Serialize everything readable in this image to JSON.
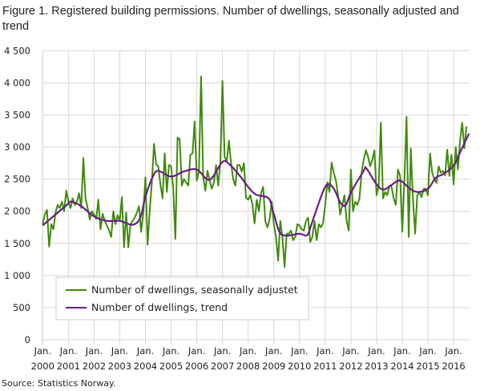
{
  "chart_data": {
    "type": "line",
    "title": "Figure 1. Registered building permissions. Number of dwellings, seasonally adjusted and trend",
    "source": "Source: Statistics Norway.",
    "xlabel": "",
    "ylabel": "",
    "ylim": [
      0,
      4500
    ],
    "yticks": [
      0,
      500,
      1000,
      1500,
      2000,
      2500,
      3000,
      3500,
      4000,
      4500
    ],
    "ytick_labels": [
      "0",
      "500",
      "1 000",
      "1 500",
      "2 000",
      "2 500",
      "3 000",
      "3 500",
      "4 000",
      "4 500"
    ],
    "xtick_prefix": "Jan.",
    "xtick_years": [
      "2000",
      "2001",
      "2002",
      "2003",
      "2004",
      "2005",
      "2006",
      "2007",
      "2008",
      "2009",
      "2010",
      "2011",
      "2012",
      "2013",
      "2014",
      "2015",
      "2016"
    ],
    "x_start": "2000-01",
    "x_frequency": "monthly",
    "grid": true,
    "legend_placement": "bottom-left",
    "series": [
      {
        "name": "Number of dwellings, seasonally adjustet",
        "color": "#3f8a0b",
        "values": [
          1800,
          1950,
          2020,
          1450,
          1800,
          1720,
          1980,
          2100,
          2050,
          2150,
          2000,
          2320,
          2150,
          2050,
          2200,
          2100,
          2150,
          2280,
          2050,
          2830,
          2200,
          2050,
          1870,
          2000,
          1950,
          1880,
          2180,
          1720,
          1960,
          1850,
          1780,
          1700,
          1600,
          2000,
          1800,
          1940,
          1850,
          2220,
          1440,
          1980,
          1440,
          1800,
          1850,
          1900,
          1980,
          2080,
          1680,
          1970,
          2530,
          1480,
          2010,
          2450,
          3050,
          2730,
          2700,
          2420,
          2200,
          2900,
          2300,
          2720,
          2700,
          2350,
          1570,
          3150,
          3120,
          2400,
          2500,
          2450,
          2400,
          2880,
          2900,
          3400,
          2480,
          2620,
          4100,
          2520,
          2320,
          2630,
          2480,
          2350,
          2450,
          2720,
          2400,
          2750,
          4030,
          2850,
          2770,
          3100,
          2750,
          2500,
          2400,
          2720,
          2720,
          2620,
          2750,
          2210,
          2180,
          2250,
          2100,
          1810,
          2180,
          2000,
          2280,
          2380,
          1850,
          1750,
          1870,
          2150,
          1800,
          1600,
          1230,
          1850,
          1600,
          1130,
          1650,
          1650,
          1700,
          1550,
          1600,
          1800,
          1780,
          1720,
          1700,
          1850,
          1900,
          1520,
          1600,
          1850,
          1550,
          1800,
          1750,
          1820,
          2100,
          2450,
          2300,
          2760,
          2600,
          2480,
          2250,
          1950,
          2100,
          2250,
          1850,
          1700,
          2650,
          2000,
          2150,
          2100,
          2200,
          2600,
          2800,
          2950,
          2850,
          2700,
          2800,
          2950,
          2250,
          2400,
          3380,
          2200,
          2300,
          2250,
          2400,
          2380,
          2200,
          2100,
          2650,
          2550,
          1680,
          2500,
          3470,
          1600,
          2980,
          2200,
          1650,
          2250,
          2300,
          2220,
          2350,
          2350,
          2250,
          2900,
          2600,
          2500,
          2440,
          2700,
          2600,
          2630,
          2560,
          2960,
          2550,
          2880,
          2420,
          3000,
          2650,
          3100,
          3380,
          2980,
          3320
        ]
      },
      {
        "name": "Number of dwellings, trend",
        "color": "#6e1a8a",
        "points": [
          [
            2000.0,
            1780
          ],
          [
            2000.5,
            1950
          ],
          [
            2001.0,
            2120
          ],
          [
            2001.1,
            2150
          ],
          [
            2001.5,
            2080
          ],
          [
            2002.0,
            1920
          ],
          [
            2002.5,
            1850
          ],
          [
            2003.0,
            1850
          ],
          [
            2003.5,
            1790
          ],
          [
            2003.8,
            1900
          ],
          [
            2004.0,
            2230
          ],
          [
            2004.3,
            2550
          ],
          [
            2004.5,
            2630
          ],
          [
            2005.0,
            2540
          ],
          [
            2005.5,
            2620
          ],
          [
            2006.0,
            2650
          ],
          [
            2006.5,
            2490
          ],
          [
            2007.0,
            2770
          ],
          [
            2007.3,
            2720
          ],
          [
            2007.7,
            2540
          ],
          [
            2008.0,
            2380
          ],
          [
            2008.3,
            2260
          ],
          [
            2008.8,
            2200
          ],
          [
            2009.0,
            1960
          ],
          [
            2009.3,
            1640
          ],
          [
            2010.0,
            1650
          ],
          [
            2010.3,
            1630
          ],
          [
            2010.5,
            1840
          ],
          [
            2011.0,
            2380
          ],
          [
            2011.3,
            2370
          ],
          [
            2011.6,
            2130
          ],
          [
            2011.8,
            2095
          ],
          [
            2012.0,
            2290
          ],
          [
            2012.5,
            2630
          ],
          [
            2012.6,
            2670
          ],
          [
            2013.0,
            2420
          ],
          [
            2013.3,
            2340
          ],
          [
            2013.8,
            2470
          ],
          [
            2014.0,
            2460
          ],
          [
            2014.3,
            2350
          ],
          [
            2014.6,
            2300
          ],
          [
            2015.0,
            2350
          ],
          [
            2015.3,
            2520
          ],
          [
            2015.6,
            2580
          ],
          [
            2016.0,
            2710
          ],
          [
            2016.3,
            2960
          ],
          [
            2016.6,
            3210
          ]
        ]
      }
    ]
  }
}
